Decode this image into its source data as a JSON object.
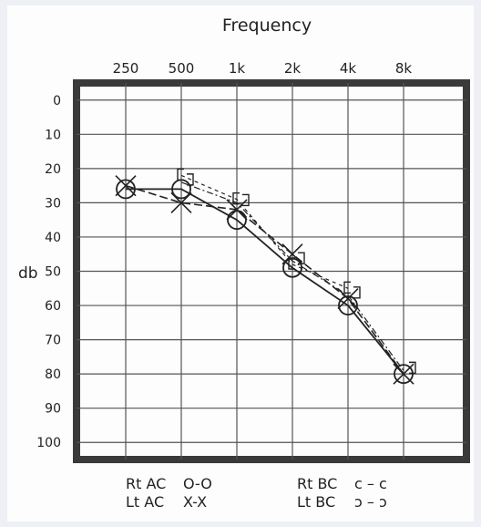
{
  "chart_data": {
    "type": "line",
    "title": "Frequency",
    "ylabel": "db",
    "x": [
      "250",
      "500",
      "1k",
      "2k",
      "4k",
      "8k"
    ],
    "yticks": [
      "0",
      "10",
      "20",
      "30",
      "40",
      "50",
      "60",
      "70",
      "80",
      "90",
      "100"
    ],
    "ylim": [
      -5,
      105
    ],
    "y_inverted": true,
    "grid": true,
    "series": [
      {
        "name": "Rt AC",
        "marker": "O",
        "values": [
          26,
          26,
          35,
          49,
          60,
          80
        ]
      },
      {
        "name": "Lt AC",
        "marker": "X",
        "values": [
          25,
          30,
          32,
          45,
          58,
          80
        ]
      },
      {
        "name": "Rt BC",
        "marker": "c",
        "values": [
          null,
          22,
          29,
          48,
          55,
          null
        ]
      },
      {
        "name": "Lt BC",
        "marker": "ɔ",
        "values": [
          null,
          24,
          30,
          47,
          57,
          79
        ]
      }
    ],
    "legend": {
      "placement": "bottom",
      "items": [
        {
          "label": "Rt AC",
          "symbol": "O-O"
        },
        {
          "label": "Lt AC",
          "symbol": "X-X"
        },
        {
          "label": "Rt BC",
          "symbol": "c – c"
        },
        {
          "label": "Lt BC",
          "symbol": "ɔ – ɔ"
        }
      ]
    },
    "colors": {
      "ink": "#222222",
      "frame": "#3a3a3a",
      "grid": "#555555"
    }
  }
}
